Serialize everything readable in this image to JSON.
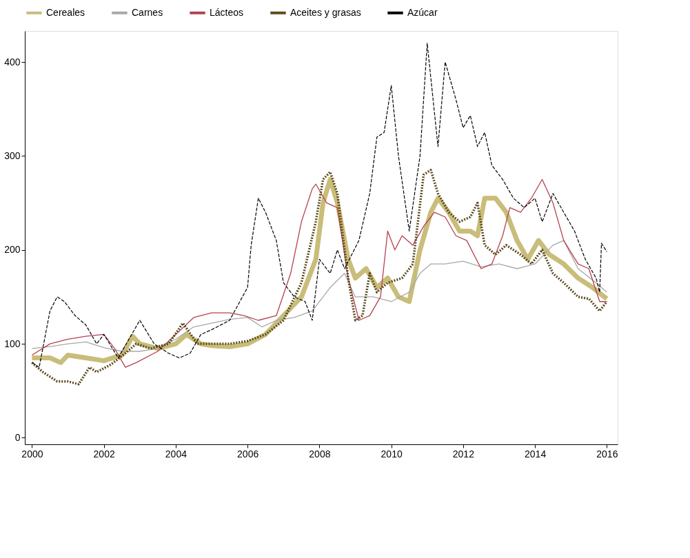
{
  "chart_data": {
    "type": "line",
    "xlim": [
      1999.8,
      2016.3
    ],
    "ylim": [
      -7,
      433
    ],
    "xticks": [
      2000,
      2002,
      2004,
      2006,
      2008,
      2010,
      2012,
      2014,
      2016
    ],
    "yticks": [
      0,
      100,
      200,
      300,
      400
    ],
    "grid": false,
    "legend": "top",
    "series": [
      {
        "name": "Cereales",
        "color": "#c9bd7a",
        "line_style": "solid",
        "x": [
          2000,
          2000.5,
          2000.8,
          2001,
          2001.5,
          2002,
          2002.5,
          2002.8,
          2003,
          2003.5,
          2004,
          2004.3,
          2004.7,
          2005,
          2005.5,
          2006,
          2006.5,
          2007,
          2007.5,
          2007.9,
          2008.1,
          2008.3,
          2008.5,
          2008.8,
          2009,
          2009.3,
          2009.6,
          2009.9,
          2010.2,
          2010.5,
          2010.8,
          2011.1,
          2011.3,
          2011.6,
          2011.9,
          2012.2,
          2012.4,
          2012.6,
          2012.9,
          2013.2,
          2013.5,
          2013.8,
          2014.1,
          2014.4,
          2014.8,
          2015.2,
          2015.6,
          2016
        ],
        "values": [
          85,
          85,
          80,
          88,
          85,
          82,
          88,
          108,
          100,
          95,
          100,
          110,
          100,
          98,
          97,
          100,
          110,
          130,
          150,
          190,
          250,
          275,
          250,
          190,
          170,
          180,
          160,
          170,
          150,
          145,
          200,
          240,
          255,
          240,
          220,
          220,
          215,
          255,
          255,
          240,
          210,
          190,
          210,
          195,
          185,
          170,
          160,
          148
        ]
      },
      {
        "name": "Carnes",
        "color": "#a8a8a8",
        "line_style": "solid",
        "x": [
          2000,
          2000.5,
          2001,
          2001.5,
          2002,
          2002.5,
          2003,
          2003.5,
          2004,
          2004.5,
          2005,
          2005.5,
          2006,
          2006.4,
          2006.8,
          2007.3,
          2007.8,
          2008.3,
          2008.7,
          2009,
          2009.5,
          2010,
          2010.5,
          2010.8,
          2011.1,
          2011.5,
          2012,
          2012.5,
          2013,
          2013.5,
          2014,
          2014.5,
          2014.8,
          2015.2,
          2015.6,
          2016
        ],
        "values": [
          95,
          97,
          100,
          102,
          96,
          92,
          92,
          95,
          105,
          118,
          122,
          126,
          128,
          118,
          125,
          128,
          135,
          160,
          175,
          150,
          150,
          145,
          155,
          175,
          185,
          185,
          188,
          182,
          185,
          180,
          185,
          205,
          210,
          180,
          168,
          155
        ]
      },
      {
        "name": "Lácteos",
        "color": "#b5404f",
        "line_style": "solid",
        "x": [
          2000,
          2000.5,
          2001,
          2001.5,
          2002,
          2002.3,
          2002.6,
          2002.9,
          2003.5,
          2004,
          2004.5,
          2005,
          2005.5,
          2005.9,
          2006.3,
          2006.8,
          2007.2,
          2007.5,
          2007.8,
          2007.9,
          2008.2,
          2008.5,
          2008.8,
          2009.1,
          2009.4,
          2009.7,
          2009.9,
          2010.1,
          2010.3,
          2010.6,
          2010.9,
          2011.2,
          2011.5,
          2011.8,
          2012.1,
          2012.5,
          2012.8,
          2013.1,
          2013.3,
          2013.6,
          2013.9,
          2014.2,
          2014.5,
          2014.8,
          2015.2,
          2015.5,
          2015.8,
          2016
        ],
        "values": [
          88,
          100,
          105,
          108,
          110,
          95,
          75,
          80,
          92,
          110,
          128,
          133,
          133,
          130,
          125,
          130,
          175,
          230,
          265,
          270,
          250,
          245,
          170,
          125,
          130,
          150,
          220,
          200,
          215,
          205,
          225,
          240,
          235,
          215,
          210,
          180,
          185,
          215,
          245,
          240,
          255,
          275,
          250,
          210,
          185,
          180,
          145,
          145
        ]
      },
      {
        "name": "Aceites y grasas",
        "color": "#5c4b1c",
        "line_style": "dotted",
        "x": [
          2000,
          2000.3,
          2000.7,
          2001,
          2001.3,
          2001.6,
          2001.8,
          2002.2,
          2002.6,
          2002.9,
          2003.3,
          2003.8,
          2004.2,
          2004.6,
          2005,
          2005.5,
          2006,
          2006.5,
          2007,
          2007.5,
          2007.9,
          2008.1,
          2008.3,
          2008.5,
          2008.8,
          2009,
          2009.2,
          2009.4,
          2009.6,
          2009.9,
          2010.3,
          2010.6,
          2010.9,
          2011.1,
          2011.3,
          2011.6,
          2011.9,
          2012.2,
          2012.4,
          2012.6,
          2012.9,
          2013.2,
          2013.6,
          2013.9,
          2014.2,
          2014.5,
          2014.8,
          2015.2,
          2015.5,
          2015.8,
          2016
        ],
        "values": [
          80,
          70,
          60,
          60,
          57,
          75,
          70,
          78,
          90,
          100,
          95,
          100,
          122,
          100,
          100,
          100,
          103,
          110,
          125,
          165,
          230,
          275,
          283,
          260,
          170,
          125,
          130,
          175,
          155,
          165,
          170,
          185,
          280,
          285,
          260,
          240,
          230,
          235,
          250,
          205,
          195,
          205,
          195,
          185,
          200,
          175,
          165,
          150,
          148,
          135,
          145
        ]
      },
      {
        "name": "Azúcar",
        "color": "#000000",
        "line_style": "dashed",
        "x": [
          2000,
          2000.2,
          2000.5,
          2000.7,
          2000.9,
          2001.2,
          2001.5,
          2001.8,
          2002,
          2002.4,
          2002.7,
          2003,
          2003.4,
          2003.8,
          2004.1,
          2004.4,
          2004.7,
          2005,
          2005.5,
          2006,
          2006.1,
          2006.3,
          2006.5,
          2006.8,
          2007,
          2007.3,
          2007.6,
          2007.8,
          2008,
          2008.3,
          2008.5,
          2008.7,
          2009.1,
          2009.4,
          2009.6,
          2009.8,
          2010,
          2010.2,
          2010.5,
          2010.8,
          2011,
          2011.3,
          2011.5,
          2011.8,
          2012,
          2012.2,
          2012.4,
          2012.6,
          2012.8,
          2013.1,
          2013.4,
          2013.7,
          2014,
          2014.2,
          2014.5,
          2014.8,
          2015.1,
          2015.4,
          2015.7,
          2015.8,
          2015.85,
          2016
        ],
        "values": [
          80,
          75,
          135,
          150,
          145,
          130,
          120,
          100,
          110,
          85,
          105,
          125,
          100,
          90,
          85,
          90,
          110,
          115,
          125,
          160,
          205,
          255,
          240,
          210,
          165,
          150,
          145,
          125,
          190,
          175,
          200,
          180,
          210,
          260,
          320,
          325,
          375,
          300,
          220,
          300,
          420,
          310,
          400,
          360,
          330,
          343,
          310,
          325,
          290,
          275,
          255,
          245,
          255,
          230,
          260,
          240,
          220,
          190,
          170,
          155,
          207,
          198
        ]
      }
    ]
  }
}
